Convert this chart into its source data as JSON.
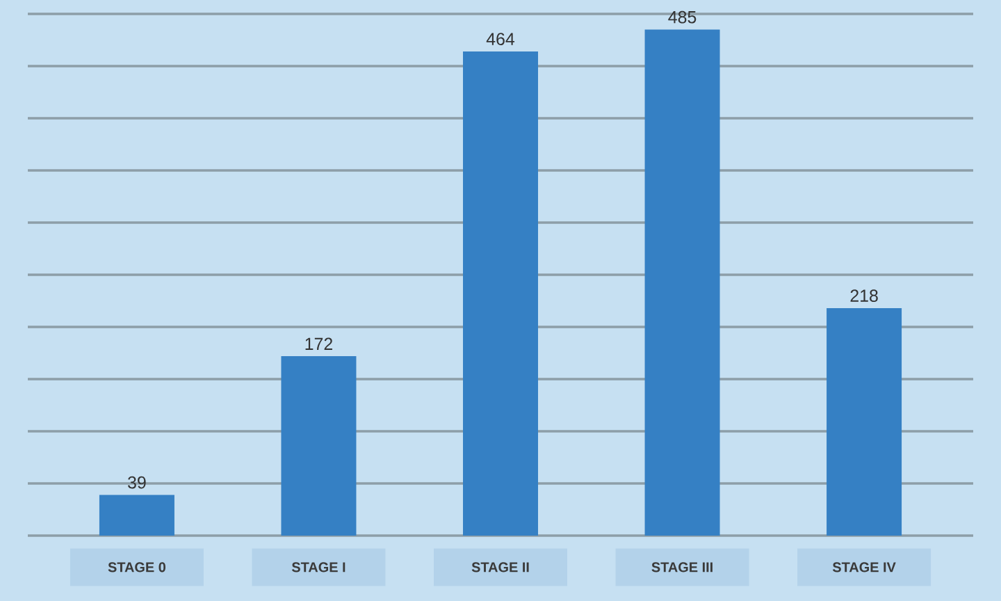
{
  "chart_data": {
    "type": "bar",
    "categories": [
      "STAGE 0",
      "STAGE I",
      "STAGE II",
      "STAGE III",
      "STAGE IV"
    ],
    "values": [
      39,
      172,
      464,
      485,
      218
    ],
    "color": "#3580c4",
    "data_labels": true,
    "ylim": [
      0,
      500
    ],
    "yticks": [
      {
        "value": 0,
        "label": null
      },
      {
        "value": 50,
        "label": null
      },
      {
        "value": 100,
        "label": null
      },
      {
        "value": 150,
        "label": null
      },
      {
        "value": 200,
        "label": null
      },
      {
        "value": 250,
        "label": null
      },
      {
        "value": 300,
        "label": null
      },
      {
        "value": 350,
        "label": null
      },
      {
        "value": 400,
        "label": null
      },
      {
        "value": 450,
        "label": null
      },
      {
        "value": 500,
        "label": null
      }
    ],
    "tick_labels": "x",
    "grid": "y"
  }
}
